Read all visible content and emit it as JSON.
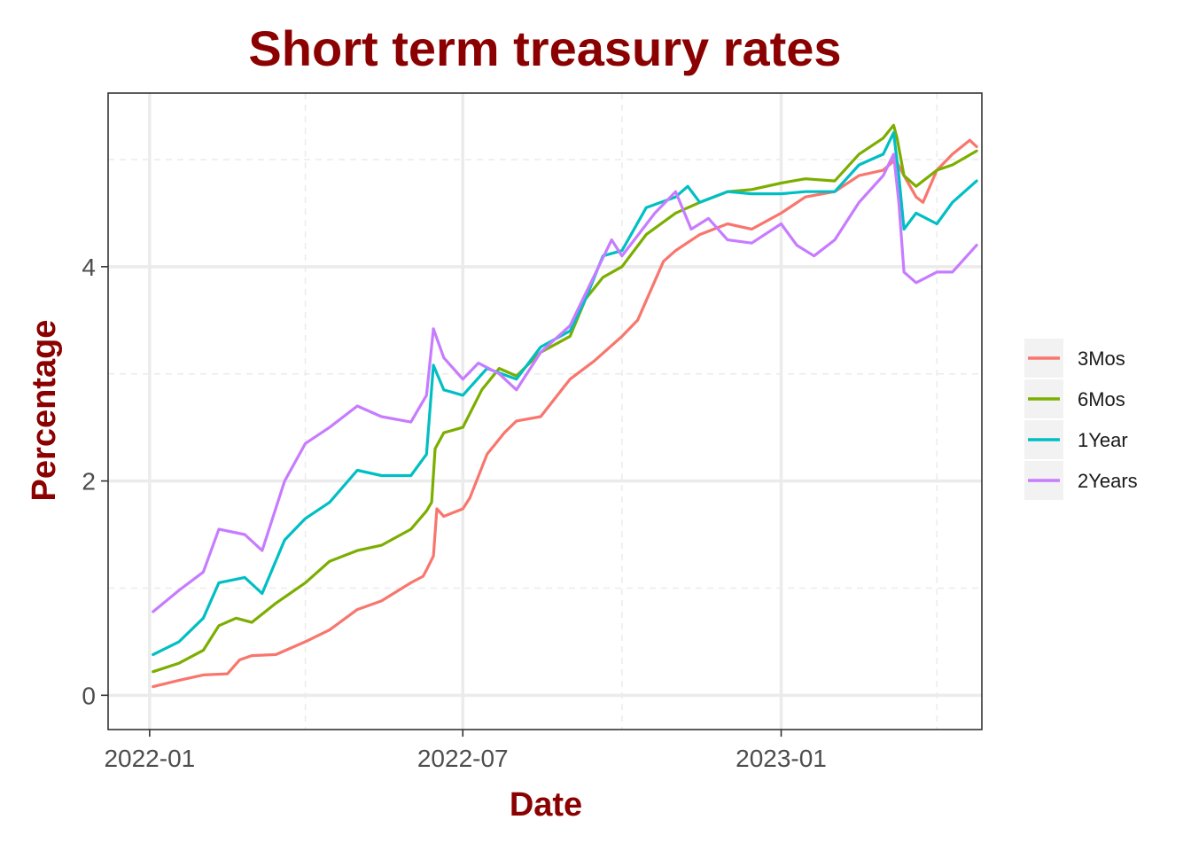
{
  "chart_data": {
    "type": "line",
    "title": "Short term treasury rates",
    "xlabel": "Date",
    "ylabel": "Percentage",
    "x_range": [
      "2021-12-08",
      "2023-04-27"
    ],
    "ylim": [
      -0.32,
      5.62
    ],
    "x_ticks": [
      {
        "date": "2022-01-01",
        "label": "2022-01"
      },
      {
        "date": "2022-07-01",
        "label": "2022-07"
      },
      {
        "date": "2023-01-01",
        "label": "2023-01"
      }
    ],
    "x_minor_ticks": [
      "2022-04-01",
      "2022-10-01",
      "2023-04-01"
    ],
    "y_ticks": [
      0,
      2,
      4
    ],
    "y_minor_ticks": [
      1,
      3,
      5
    ],
    "grid": true,
    "legend_position": "right",
    "colors": {
      "title": "#8b0000",
      "axis_title": "#8b0000",
      "grid": "#ebebeb",
      "border": "#333333",
      "legend_key_bg": "#f2f2f2"
    },
    "series": [
      {
        "name": "3Mos",
        "color": "#f8766d",
        "points": [
          [
            "2022-01-03",
            0.08
          ],
          [
            "2022-01-18",
            0.14
          ],
          [
            "2022-02-01",
            0.19
          ],
          [
            "2022-02-15",
            0.2
          ],
          [
            "2022-02-22",
            0.33
          ],
          [
            "2022-03-01",
            0.37
          ],
          [
            "2022-03-15",
            0.38
          ],
          [
            "2022-04-01",
            0.5
          ],
          [
            "2022-04-15",
            0.61
          ],
          [
            "2022-05-01",
            0.8
          ],
          [
            "2022-05-15",
            0.88
          ],
          [
            "2022-06-01",
            1.05
          ],
          [
            "2022-06-08",
            1.11
          ],
          [
            "2022-06-10",
            1.17
          ],
          [
            "2022-06-14",
            1.3
          ],
          [
            "2022-06-16",
            1.74
          ],
          [
            "2022-06-20",
            1.67
          ],
          [
            "2022-07-01",
            1.74
          ],
          [
            "2022-07-05",
            1.84
          ],
          [
            "2022-07-15",
            2.25
          ],
          [
            "2022-07-25",
            2.45
          ],
          [
            "2022-08-01",
            2.56
          ],
          [
            "2022-08-15",
            2.6
          ],
          [
            "2022-09-01",
            2.95
          ],
          [
            "2022-09-15",
            3.12
          ],
          [
            "2022-10-01",
            3.35
          ],
          [
            "2022-10-10",
            3.5
          ],
          [
            "2022-10-25",
            4.05
          ],
          [
            "2022-11-01",
            4.15
          ],
          [
            "2022-11-15",
            4.3
          ],
          [
            "2022-12-01",
            4.4
          ],
          [
            "2022-12-15",
            4.35
          ],
          [
            "2023-01-01",
            4.5
          ],
          [
            "2023-01-15",
            4.65
          ],
          [
            "2023-02-01",
            4.7
          ],
          [
            "2023-02-15",
            4.85
          ],
          [
            "2023-03-01",
            4.9
          ],
          [
            "2023-03-08",
            5.0
          ],
          [
            "2023-03-13",
            4.85
          ],
          [
            "2023-03-20",
            4.65
          ],
          [
            "2023-03-24",
            4.6
          ],
          [
            "2023-04-01",
            4.9
          ],
          [
            "2023-04-10",
            5.05
          ],
          [
            "2023-04-20",
            5.18
          ],
          [
            "2023-04-24",
            5.12
          ]
        ]
      },
      {
        "name": "6Mos",
        "color": "#7cae00",
        "points": [
          [
            "2022-01-03",
            0.22
          ],
          [
            "2022-01-18",
            0.3
          ],
          [
            "2022-02-01",
            0.42
          ],
          [
            "2022-02-10",
            0.65
          ],
          [
            "2022-02-20",
            0.72
          ],
          [
            "2022-03-01",
            0.68
          ],
          [
            "2022-03-15",
            0.86
          ],
          [
            "2022-04-01",
            1.05
          ],
          [
            "2022-04-15",
            1.25
          ],
          [
            "2022-05-01",
            1.35
          ],
          [
            "2022-05-15",
            1.4
          ],
          [
            "2022-06-01",
            1.55
          ],
          [
            "2022-06-10",
            1.72
          ],
          [
            "2022-06-13",
            1.8
          ],
          [
            "2022-06-15",
            2.3
          ],
          [
            "2022-06-20",
            2.45
          ],
          [
            "2022-07-01",
            2.5
          ],
          [
            "2022-07-12",
            2.85
          ],
          [
            "2022-07-22",
            3.05
          ],
          [
            "2022-08-01",
            2.98
          ],
          [
            "2022-08-15",
            3.2
          ],
          [
            "2022-09-01",
            3.35
          ],
          [
            "2022-09-10",
            3.7
          ],
          [
            "2022-09-20",
            3.9
          ],
          [
            "2022-10-01",
            4.0
          ],
          [
            "2022-10-15",
            4.3
          ],
          [
            "2022-11-01",
            4.5
          ],
          [
            "2022-11-15",
            4.6
          ],
          [
            "2022-12-01",
            4.7
          ],
          [
            "2022-12-15",
            4.72
          ],
          [
            "2023-01-01",
            4.78
          ],
          [
            "2023-01-15",
            4.82
          ],
          [
            "2023-02-01",
            4.8
          ],
          [
            "2023-02-15",
            5.05
          ],
          [
            "2023-03-01",
            5.2
          ],
          [
            "2023-03-07",
            5.32
          ],
          [
            "2023-03-09",
            5.2
          ],
          [
            "2023-03-13",
            4.85
          ],
          [
            "2023-03-20",
            4.75
          ],
          [
            "2023-04-01",
            4.9
          ],
          [
            "2023-04-10",
            4.95
          ],
          [
            "2023-04-24",
            5.08
          ]
        ]
      },
      {
        "name": "1Year",
        "color": "#00bfc4",
        "points": [
          [
            "2022-01-03",
            0.38
          ],
          [
            "2022-01-18",
            0.5
          ],
          [
            "2022-02-01",
            0.72
          ],
          [
            "2022-02-10",
            1.05
          ],
          [
            "2022-02-25",
            1.1
          ],
          [
            "2022-03-07",
            0.95
          ],
          [
            "2022-03-20",
            1.45
          ],
          [
            "2022-04-01",
            1.65
          ],
          [
            "2022-04-15",
            1.8
          ],
          [
            "2022-05-01",
            2.1
          ],
          [
            "2022-05-15",
            2.05
          ],
          [
            "2022-06-01",
            2.05
          ],
          [
            "2022-06-10",
            2.25
          ],
          [
            "2022-06-14",
            3.08
          ],
          [
            "2022-06-20",
            2.85
          ],
          [
            "2022-07-01",
            2.8
          ],
          [
            "2022-07-15",
            3.05
          ],
          [
            "2022-08-01",
            2.95
          ],
          [
            "2022-08-15",
            3.25
          ],
          [
            "2022-09-01",
            3.4
          ],
          [
            "2022-09-10",
            3.7
          ],
          [
            "2022-09-20",
            4.1
          ],
          [
            "2022-10-01",
            4.15
          ],
          [
            "2022-10-15",
            4.55
          ],
          [
            "2022-11-01",
            4.65
          ],
          [
            "2022-11-08",
            4.75
          ],
          [
            "2022-11-15",
            4.6
          ],
          [
            "2022-12-01",
            4.7
          ],
          [
            "2022-12-15",
            4.68
          ],
          [
            "2023-01-01",
            4.68
          ],
          [
            "2023-01-15",
            4.7
          ],
          [
            "2023-02-01",
            4.7
          ],
          [
            "2023-02-15",
            4.95
          ],
          [
            "2023-03-01",
            5.05
          ],
          [
            "2023-03-07",
            5.25
          ],
          [
            "2023-03-10",
            4.85
          ],
          [
            "2023-03-13",
            4.35
          ],
          [
            "2023-03-20",
            4.5
          ],
          [
            "2023-04-01",
            4.4
          ],
          [
            "2023-04-10",
            4.6
          ],
          [
            "2023-04-24",
            4.8
          ]
        ]
      },
      {
        "name": "2Years",
        "color": "#c77cff",
        "points": [
          [
            "2022-01-03",
            0.78
          ],
          [
            "2022-01-18",
            0.98
          ],
          [
            "2022-02-01",
            1.15
          ],
          [
            "2022-02-10",
            1.55
          ],
          [
            "2022-02-25",
            1.5
          ],
          [
            "2022-03-07",
            1.35
          ],
          [
            "2022-03-20",
            2.0
          ],
          [
            "2022-04-01",
            2.35
          ],
          [
            "2022-04-15",
            2.5
          ],
          [
            "2022-05-01",
            2.7
          ],
          [
            "2022-05-15",
            2.6
          ],
          [
            "2022-06-01",
            2.55
          ],
          [
            "2022-06-10",
            2.8
          ],
          [
            "2022-06-14",
            3.42
          ],
          [
            "2022-06-20",
            3.15
          ],
          [
            "2022-07-01",
            2.95
          ],
          [
            "2022-07-10",
            3.1
          ],
          [
            "2022-07-22",
            3.0
          ],
          [
            "2022-08-01",
            2.85
          ],
          [
            "2022-08-15",
            3.2
          ],
          [
            "2022-09-01",
            3.45
          ],
          [
            "2022-09-10",
            3.75
          ],
          [
            "2022-09-25",
            4.25
          ],
          [
            "2022-10-01",
            4.1
          ],
          [
            "2022-10-20",
            4.5
          ],
          [
            "2022-11-01",
            4.7
          ],
          [
            "2022-11-10",
            4.35
          ],
          [
            "2022-11-20",
            4.45
          ],
          [
            "2022-12-01",
            4.25
          ],
          [
            "2022-12-15",
            4.22
          ],
          [
            "2023-01-01",
            4.4
          ],
          [
            "2023-01-10",
            4.2
          ],
          [
            "2023-01-20",
            4.1
          ],
          [
            "2023-02-01",
            4.25
          ],
          [
            "2023-02-15",
            4.6
          ],
          [
            "2023-03-01",
            4.85
          ],
          [
            "2023-03-07",
            5.05
          ],
          [
            "2023-03-10",
            4.6
          ],
          [
            "2023-03-13",
            3.95
          ],
          [
            "2023-03-20",
            3.85
          ],
          [
            "2023-04-01",
            3.95
          ],
          [
            "2023-04-10",
            3.95
          ],
          [
            "2023-04-24",
            4.2
          ]
        ]
      }
    ]
  }
}
